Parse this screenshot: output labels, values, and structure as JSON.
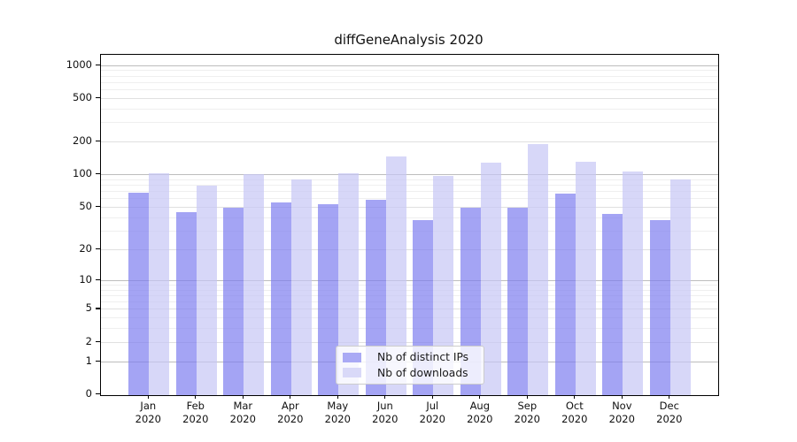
{
  "chart_data": {
    "type": "bar",
    "title": "diffGeneAnalysis 2020",
    "categories": [
      "Jan",
      "Feb",
      "Mar",
      "Apr",
      "May",
      "Jun",
      "Jul",
      "Aug",
      "Sep",
      "Oct",
      "Nov",
      "Dec"
    ],
    "year_label": "2020",
    "series": [
      {
        "name": "Nb of distinct IPs",
        "color": "rgba(125,125,240,0.7)",
        "legend_color": "#a9a9f5",
        "values": [
          68,
          45,
          50,
          56,
          53,
          59,
          38,
          50,
          50,
          67,
          43,
          38
        ]
      },
      {
        "name": "Nb of downloads",
        "color": "rgba(198,198,245,0.7)",
        "legend_color": "#d9d9f8",
        "values": [
          104,
          80,
          101,
          90,
          103,
          147,
          98,
          130,
          193,
          132,
          108,
          91
        ]
      }
    ],
    "yscale": "symlog-log1p",
    "ylim": [
      0,
      1250
    ],
    "yticks": [
      {
        "label": "1000",
        "value": 1000
      },
      {
        "label": "500",
        "value": 500
      },
      {
        "label": "200",
        "value": 200
      },
      {
        "label": "100",
        "value": 100
      },
      {
        "label": "50",
        "value": 50
      },
      {
        "label": "20",
        "value": 20
      },
      {
        "label": "10",
        "value": 10
      },
      {
        "label": "5",
        "value": 5
      },
      {
        "label": "2",
        "value": 2
      },
      {
        "label": "1",
        "value": 1
      },
      {
        "label": "0",
        "value": 0
      }
    ],
    "grid": {
      "power": [
        1,
        10,
        100,
        1000
      ],
      "labeled": [
        2,
        5,
        20,
        50,
        200,
        500
      ],
      "minor": [
        3,
        4,
        6,
        7,
        8,
        9,
        30,
        40,
        60,
        70,
        80,
        90,
        300,
        400,
        600,
        700,
        800,
        900
      ]
    },
    "grid_on": true,
    "legend_position": "bottom-center",
    "colors": {
      "grid_power": "#bdbdbd",
      "grid_labeled": "#e0e0e0",
      "grid_minor": "#efefef",
      "axis": "#000000",
      "text": "#1a1a1a",
      "background": "#ffffff"
    }
  }
}
